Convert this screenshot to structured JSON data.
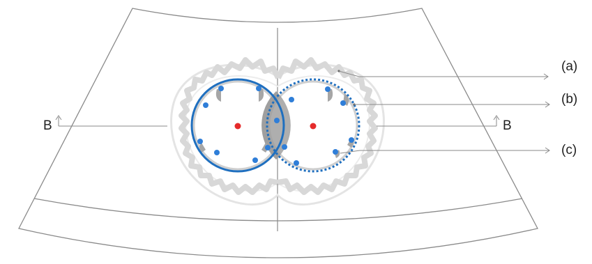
{
  "labels": {
    "a": "(a)",
    "b": "(b)",
    "c": "(c)",
    "section_left": "B",
    "section_right": "B"
  },
  "colors": {
    "frame_line": "#8a8a8a",
    "outline_light": "#e4e4e4",
    "wavy_band": "#d8d8d8",
    "stroke_blue": "#1f6fbf",
    "dot_blue": "#2f7ed8",
    "center_red": "#e52b2b",
    "overlap_gray": "#9a9a9a",
    "fan_shape_fill": "#a6a6a6",
    "label_text": "#1f1f1f"
  }
}
